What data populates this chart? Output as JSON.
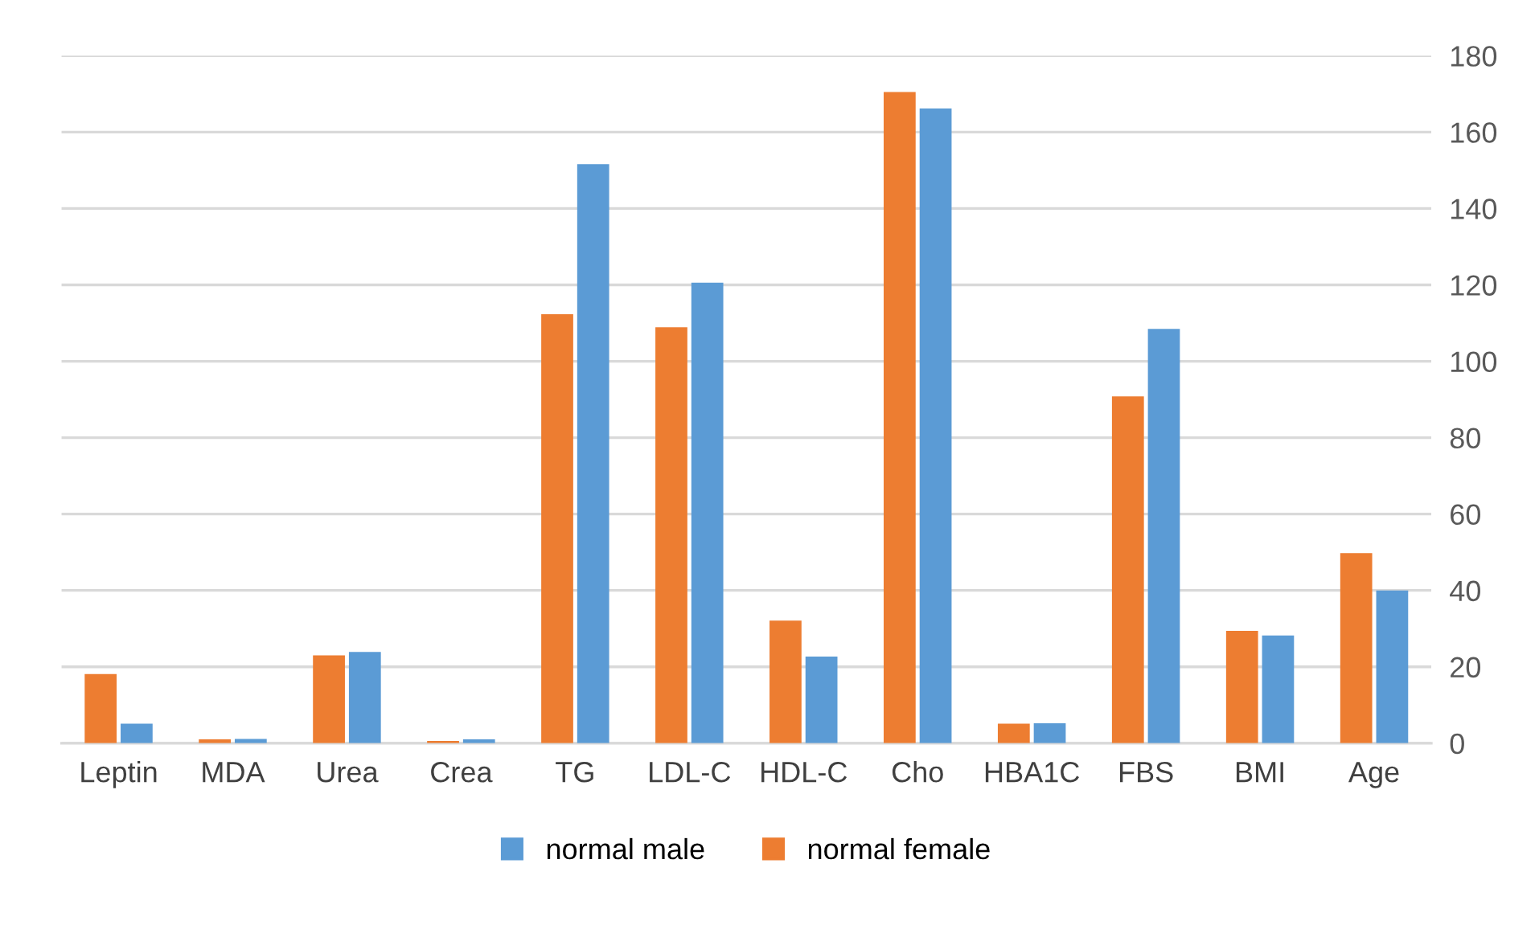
{
  "chart_data": {
    "type": "bar",
    "categories": [
      "Leptin",
      "MDA",
      "Urea",
      "Crea",
      "TG",
      "LDL-C",
      "HDL-C",
      "Cho",
      "HBA1C",
      "FBS",
      "BMI",
      "Age"
    ],
    "series": [
      {
        "name": "normal female",
        "color": "#ed7d31",
        "values": [
          18.1,
          1.0,
          23.0,
          0.6,
          112.3,
          108.9,
          32.1,
          170.5,
          5.1,
          90.8,
          29.4,
          49.8
        ]
      },
      {
        "name": "normal male",
        "color": "#5b9bd5",
        "values": [
          5.1,
          1.1,
          23.9,
          1.0,
          151.6,
          120.6,
          22.7,
          166.2,
          5.2,
          108.5,
          28.2,
          40.0
        ]
      }
    ],
    "ylim": [
      0,
      180
    ],
    "yticks": [
      0,
      20,
      40,
      60,
      80,
      100,
      120,
      140,
      160,
      180
    ],
    "grid": "y",
    "legend": "bottom"
  }
}
